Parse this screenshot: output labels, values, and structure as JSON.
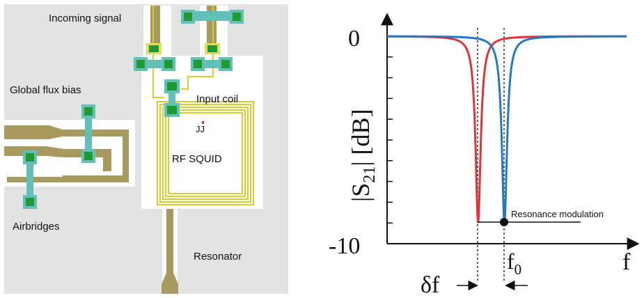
{
  "layout_diagram": {
    "labels": {
      "incoming_signal": "Incoming signal",
      "global_flux_bias": "Global flux bias",
      "input_coil": "Input coil",
      "jj": "JJ",
      "rf_squid": "RF SQUID",
      "airbridges": "Airbridges",
      "resonator": "Resonator"
    },
    "colors": {
      "ground_plane": "#e3e3e3",
      "trace": "#a89a5e",
      "coil": "#d9cf2a",
      "pad_outer": "#63c0b6",
      "pad_inner": "#1f9a32",
      "junction": "#e0302a"
    }
  },
  "plot": {
    "y_ticks": [
      "0",
      "-10"
    ],
    "ylabel_main": "|S",
    "ylabel_sub": "21",
    "ylabel_tail": "| [dB]",
    "xlabel": "f",
    "f0_main": "f",
    "f0_sub": "0",
    "delta_f": "δf",
    "annotation": "Resonance modulation",
    "colors": {
      "shifted": "#e0343c",
      "unshifted": "#2479c4"
    }
  },
  "chart_data": {
    "type": "line",
    "ylim": [
      -10,
      0
    ],
    "y_tick_labels": [
      "0",
      "-10"
    ],
    "x_axis_label": "f",
    "series": [
      {
        "center": 0.38,
        "width": 0.055,
        "min_db": -9
      },
      {
        "center": 0.49,
        "width": 0.055,
        "min_db": -9
      }
    ],
    "markers": {
      "f0": 0.49,
      "delta_f": 0.11
    }
  }
}
